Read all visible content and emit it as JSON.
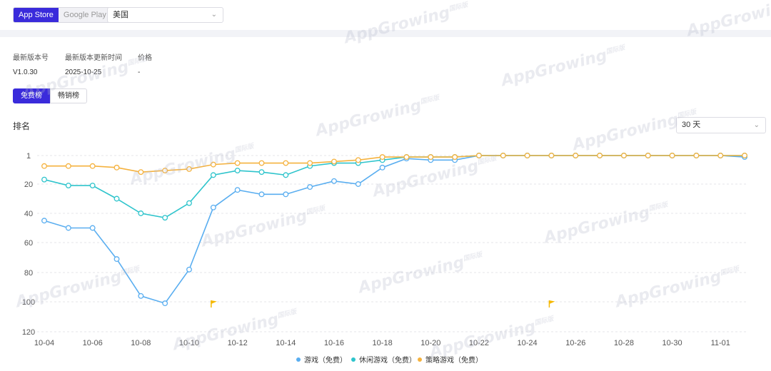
{
  "store_tabs": [
    {
      "label": "App Store",
      "active": true
    },
    {
      "label": "Google Play",
      "active": false
    }
  ],
  "region": {
    "value": "美国"
  },
  "meta": [
    {
      "label": "最新版本号",
      "value": "V1.0.30"
    },
    {
      "label": "最新版本更新时间",
      "value": "2025-10-25"
    },
    {
      "label": "价格",
      "value": "-"
    }
  ],
  "rank_tabs": [
    {
      "label": "免费榜",
      "active": true
    },
    {
      "label": "畅销榜",
      "active": false
    }
  ],
  "chart_title": "排名",
  "range_select": {
    "value": "30 天"
  },
  "watermark": {
    "text": "AppGrowing",
    "sub": "国际版"
  },
  "colors": {
    "accent": "#3a2bdb",
    "series": [
      "#5aaef0",
      "#2ec4cc",
      "#f5b23e"
    ],
    "flag": "#f5b800"
  },
  "chart_data": {
    "type": "line",
    "x": [
      "10-04",
      "10-05",
      "10-06",
      "10-07",
      "10-08",
      "10-09",
      "10-10",
      "10-11",
      "10-12",
      "10-13",
      "10-14",
      "10-15",
      "10-16",
      "10-17",
      "10-18",
      "10-19",
      "10-20",
      "10-21",
      "10-22",
      "10-23",
      "10-24",
      "10-25",
      "10-26",
      "10-27",
      "10-28",
      "10-29",
      "10-30",
      "10-31",
      "11-01",
      "11-02"
    ],
    "x_tick_labels": [
      "10-04",
      "10-06",
      "10-08",
      "10-10",
      "10-12",
      "10-14",
      "10-16",
      "10-18",
      "10-20",
      "10-22",
      "10-24",
      "10-26",
      "10-28",
      "10-30",
      "11-01"
    ],
    "y_ticks": [
      1,
      20,
      40,
      60,
      80,
      100,
      120
    ],
    "ylim": [
      120,
      1
    ],
    "y_reversed": true,
    "grid": true,
    "legend_position": "bottom",
    "series": [
      {
        "name": "游戏（免费）",
        "values": [
          45,
          50,
          50,
          71,
          96,
          101,
          78,
          36,
          24,
          27,
          27,
          22,
          18,
          20,
          9,
          3,
          4,
          4,
          1,
          1,
          1,
          1,
          1,
          1,
          1,
          1,
          1,
          1,
          1,
          2
        ]
      },
      {
        "name": "休闲游戏（免费）",
        "values": [
          17,
          21,
          21,
          30,
          40,
          43,
          33,
          14,
          11,
          12,
          14,
          8,
          6,
          6,
          4,
          2,
          2,
          2,
          1,
          1,
          1,
          1,
          1,
          1,
          1,
          1,
          1,
          1,
          1,
          1
        ]
      },
      {
        "name": "策略游戏（免费）",
        "values": [
          8,
          8,
          8,
          9,
          12,
          11,
          10,
          7,
          6,
          6,
          6,
          6,
          5,
          4,
          2,
          2,
          2,
          2,
          1,
          1,
          1,
          1,
          1,
          1,
          1,
          1,
          1,
          1,
          1,
          1
        ]
      }
    ],
    "markers": [
      {
        "type": "flag",
        "x": "10-11"
      },
      {
        "type": "flag",
        "x": "10-25"
      }
    ]
  }
}
